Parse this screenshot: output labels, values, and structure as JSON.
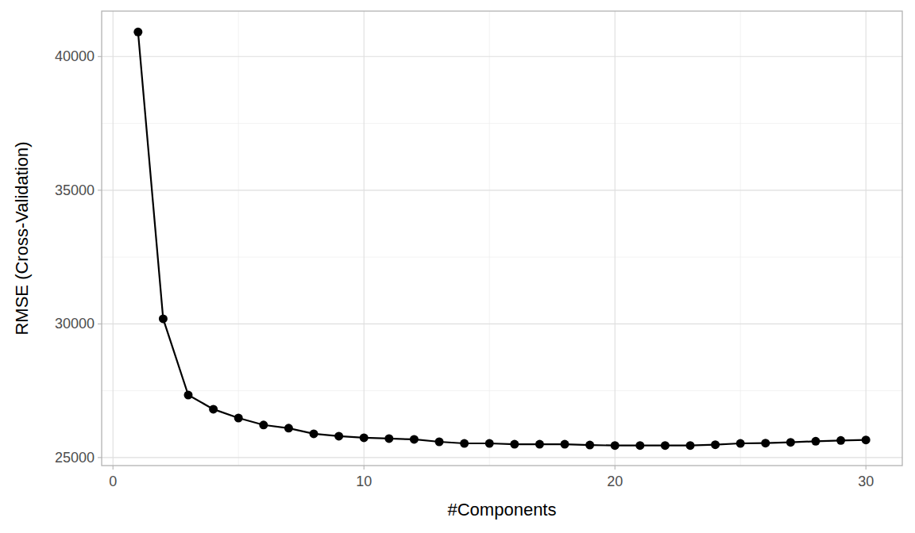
{
  "chart_data": {
    "type": "line",
    "x_label": "#Components",
    "y_label": "RMSE (Cross-Validation)",
    "x": [
      1,
      2,
      3,
      4,
      5,
      6,
      7,
      8,
      9,
      10,
      11,
      12,
      13,
      14,
      15,
      16,
      17,
      18,
      19,
      20,
      21,
      22,
      23,
      24,
      25,
      26,
      27,
      28,
      29,
      30
    ],
    "series": [
      {
        "name": "RMSE",
        "color": "#000000",
        "marker": "circle",
        "line_style": "solid",
        "values": [
          40920,
          30190,
          27340,
          26810,
          26480,
          26220,
          26100,
          25890,
          25800,
          25740,
          25710,
          25680,
          25590,
          25530,
          25530,
          25500,
          25500,
          25500,
          25470,
          25450,
          25450,
          25450,
          25450,
          25480,
          25530,
          25540,
          25570,
          25610,
          25640,
          25660
        ]
      }
    ],
    "xlim": [
      -0.45,
      31.45
    ],
    "ylim": [
      24700,
      41700
    ],
    "xticks": [
      0,
      10,
      20,
      30
    ],
    "yticks": [
      25000,
      30000,
      35000,
      40000
    ],
    "grid": true
  }
}
